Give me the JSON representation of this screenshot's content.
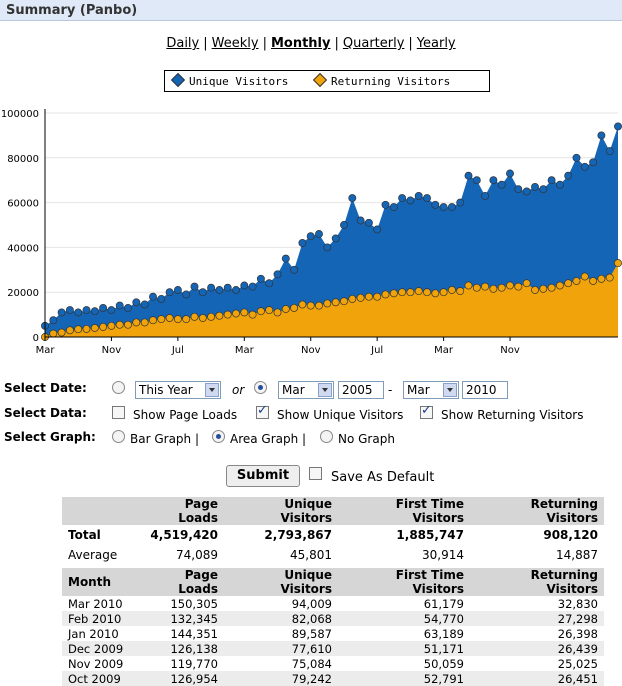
{
  "window": {
    "title": "Summary (Panbo)"
  },
  "periods": [
    {
      "label": "Daily",
      "active": false
    },
    {
      "label": "Weekly",
      "active": false
    },
    {
      "label": "Monthly",
      "active": true
    },
    {
      "label": "Quarterly",
      "active": false
    },
    {
      "label": "Yearly",
      "active": false
    }
  ],
  "legend": {
    "unique": {
      "label": "Unique Visitors",
      "color": "#1565b6"
    },
    "returning": {
      "label": "Returning Visitors",
      "color": "#f0a30a"
    }
  },
  "chart_data": {
    "type": "area",
    "x_tick_labels": [
      "Mar",
      "Nov",
      "Jul",
      "Mar",
      "Nov",
      "Jul",
      "Mar",
      "Nov"
    ],
    "y_ticks": [
      "0",
      "20000",
      "40000",
      "60000",
      "80000",
      "100000"
    ],
    "ylim": [
      0,
      100000
    ],
    "x_range_months": "Mar 2005 - Mar 2010",
    "series": [
      {
        "name": "Unique Visitors",
        "color": "#1565b6",
        "values": [
          5000,
          7500,
          11000,
          12000,
          11000,
          12000,
          11500,
          13000,
          12000,
          14000,
          13000,
          15500,
          14500,
          18000,
          17000,
          20000,
          21000,
          19000,
          22500,
          20000,
          22000,
          21000,
          22000,
          21000,
          23000,
          22500,
          26000,
          24000,
          28000,
          35000,
          30000,
          42000,
          45000,
          46000,
          40000,
          44000,
          50000,
          62000,
          52000,
          51000,
          48000,
          59000,
          58000,
          62000,
          61000,
          63000,
          62000,
          59000,
          58000,
          58000,
          60000,
          72000,
          70000,
          63000,
          70000,
          68000,
          73000,
          66000,
          65000,
          67000,
          66000,
          70000,
          68000,
          72000,
          80000,
          76000,
          78000,
          90000,
          83000,
          94000
        ]
      },
      {
        "name": "Returning Visitors",
        "color": "#f0a30a",
        "values": [
          0,
          1500,
          2000,
          3000,
          3500,
          3600,
          4000,
          4500,
          5000,
          5500,
          5500,
          6500,
          6500,
          7500,
          8000,
          8500,
          8000,
          8000,
          9000,
          8500,
          9000,
          9500,
          10000,
          10500,
          11000,
          10000,
          11500,
          12000,
          11000,
          12500,
          13000,
          14500,
          14000,
          14000,
          15000,
          15500,
          16000,
          17000,
          17500,
          18000,
          18000,
          19000,
          19500,
          20000,
          20000,
          20500,
          20000,
          19500,
          20000,
          21000,
          20500,
          23000,
          22000,
          22500,
          21500,
          22000,
          23000,
          22500,
          24000,
          21000,
          21500,
          22000,
          23000,
          24000,
          25000,
          27000,
          25000,
          26000,
          26500,
          33000
        ]
      }
    ]
  },
  "form": {
    "select_date_label": "Select Date:",
    "this_year": "This Year",
    "or": "or",
    "from_month": "Mar",
    "from_year": "2005",
    "dash": "-",
    "to_month": "Mar",
    "to_year": "2010",
    "select_data_label": "Select Data:",
    "show_page_loads": "Show Page Loads",
    "show_unique": "Show Unique Visitors",
    "show_returning": "Show Returning Visitors",
    "select_graph_label": "Select Graph:",
    "bar_graph": "Bar Graph |",
    "area_graph": "Area Graph |",
    "no_graph": "No Graph",
    "submit": "Submit",
    "save_default": "Save As Default"
  },
  "summary_table": {
    "headers": [
      "",
      "Page Loads",
      "Unique Visitors",
      "First Time Visitors",
      "Returning Visitors"
    ],
    "rows": [
      [
        "Total",
        "4,519,420",
        "2,793,867",
        "1,885,747",
        "908,120"
      ],
      [
        "Average",
        "74,089",
        "45,801",
        "30,914",
        "14,887"
      ]
    ]
  },
  "monthly_table": {
    "headers": [
      "Month",
      "Page Loads",
      "Unique Visitors",
      "First Time Visitors",
      "Returning Visitors"
    ],
    "rows": [
      [
        "Mar 2010",
        "150,305",
        "94,009",
        "61,179",
        "32,830"
      ],
      [
        "Feb 2010",
        "132,345",
        "82,068",
        "54,770",
        "27,298"
      ],
      [
        "Jan 2010",
        "144,351",
        "89,587",
        "63,189",
        "26,398"
      ],
      [
        "Dec 2009",
        "126,138",
        "77,610",
        "51,171",
        "26,439"
      ],
      [
        "Nov 2009",
        "119,770",
        "75,084",
        "50,059",
        "25,025"
      ],
      [
        "Oct 2009",
        "126,954",
        "79,242",
        "52,791",
        "26,451"
      ]
    ]
  }
}
